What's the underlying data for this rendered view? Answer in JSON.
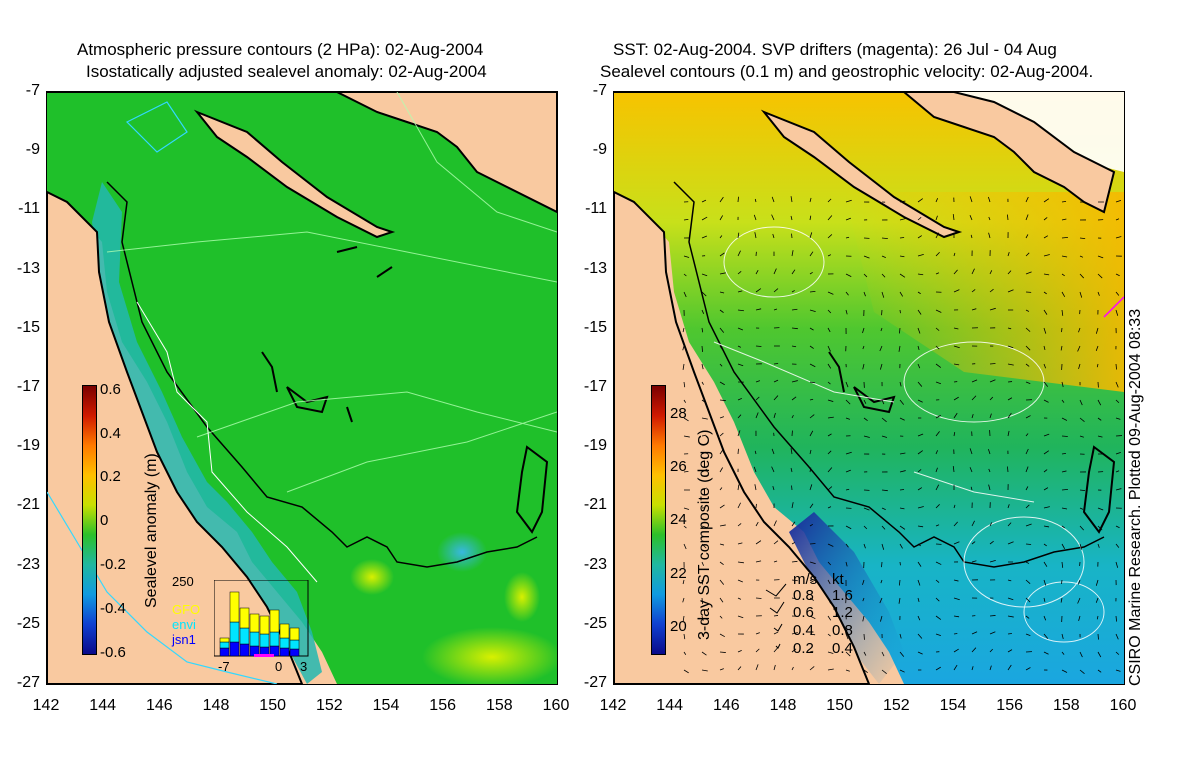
{
  "left_panel": {
    "title_line1": "Atmospheric pressure contours (2 HPa): 02-Aug-2004",
    "title_line2": "Isostatically adjusted sealevel anomaly: 02-Aug-2004",
    "colorbar_label": "Sealevel anomaly (m)",
    "colorbar_ticks": [
      "0.6",
      "0.4",
      "0.2",
      "0",
      "-0.2",
      "-0.4",
      "-0.6"
    ],
    "inset": {
      "ymax_label": "250",
      "x_ticks": [
        "-7",
        "0",
        "3"
      ],
      "legend": [
        {
          "name": "GFO",
          "color": "#ffff00"
        },
        {
          "name": "envi",
          "color": "#00e5ff"
        },
        {
          "name": "jsn1",
          "color": "#0000ff"
        }
      ]
    }
  },
  "right_panel": {
    "title_line1": "SST: 02-Aug-2004. SVP drifters (magenta): 26 Jul - 04 Aug",
    "title_line2": "Sealevel contours (0.1 m) and geostrophic velocity: 02-Aug-2004.",
    "colorbar_label": "3-day SST composite (deg C)",
    "colorbar_ticks": [
      "28",
      "26",
      "24",
      "22",
      "20"
    ],
    "velocity_legend": {
      "header_ms": "m/s",
      "header_kt": "kt",
      "rows": [
        {
          "ms": "0.8",
          "kt": "1.6"
        },
        {
          "ms": "0.6",
          "kt": "1.2"
        },
        {
          "ms": "0.4",
          "kt": "0.8"
        },
        {
          "ms": "0.2",
          "kt": "0.4"
        }
      ]
    }
  },
  "axes": {
    "y_ticks": [
      "-7",
      "-9",
      "-11",
      "-13",
      "-15",
      "-17",
      "-19",
      "-21",
      "-23",
      "-25",
      "-27"
    ],
    "x_ticks": [
      "142",
      "144",
      "146",
      "148",
      "150",
      "152",
      "154",
      "156",
      "158",
      "160"
    ]
  },
  "credit": "CSIRO Marine Research. Plotted 09-Aug-2004 08:33",
  "colors": {
    "land": "#f9c9a0",
    "ocean_anomaly": "#22c32a",
    "ssh_high": "#f0a000",
    "sst_warm": "#f5c400",
    "sst_cold": "#1a2a9a"
  }
}
